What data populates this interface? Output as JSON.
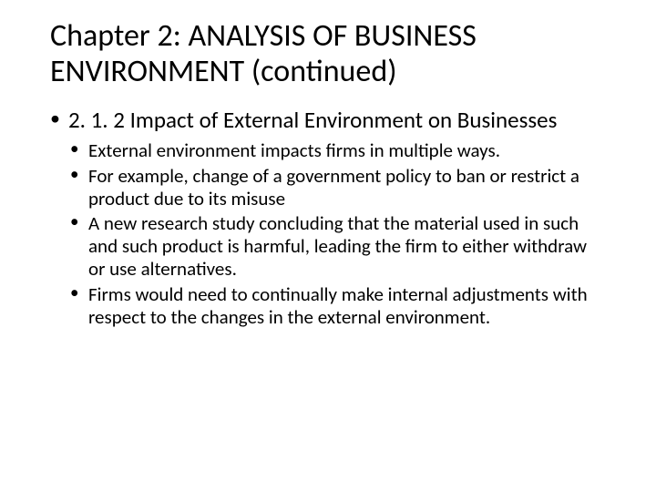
{
  "title": "Chapter 2: ANALYSIS OF BUSINESS ENVIRONMENT (continued)",
  "section": {
    "heading": "2. 1. 2 Impact of External Environment on Businesses",
    "bullets": [
      "External environment impacts firms in multiple ways.",
      "For example, change of a government policy to ban or restrict a product due to its misuse",
      "A new research study concluding that the material used in such and such product is harmful, leading the firm to either withdraw or use alternatives.",
      "Firms would need to continually make internal adjustments with respect to the changes in the external environment."
    ]
  },
  "colors": {
    "background": "#ffffff",
    "text": "#000000"
  },
  "typography": {
    "title_fontsize": 34,
    "level1_fontsize": 25,
    "level2_fontsize": 21,
    "font_family": "Calibri"
  }
}
